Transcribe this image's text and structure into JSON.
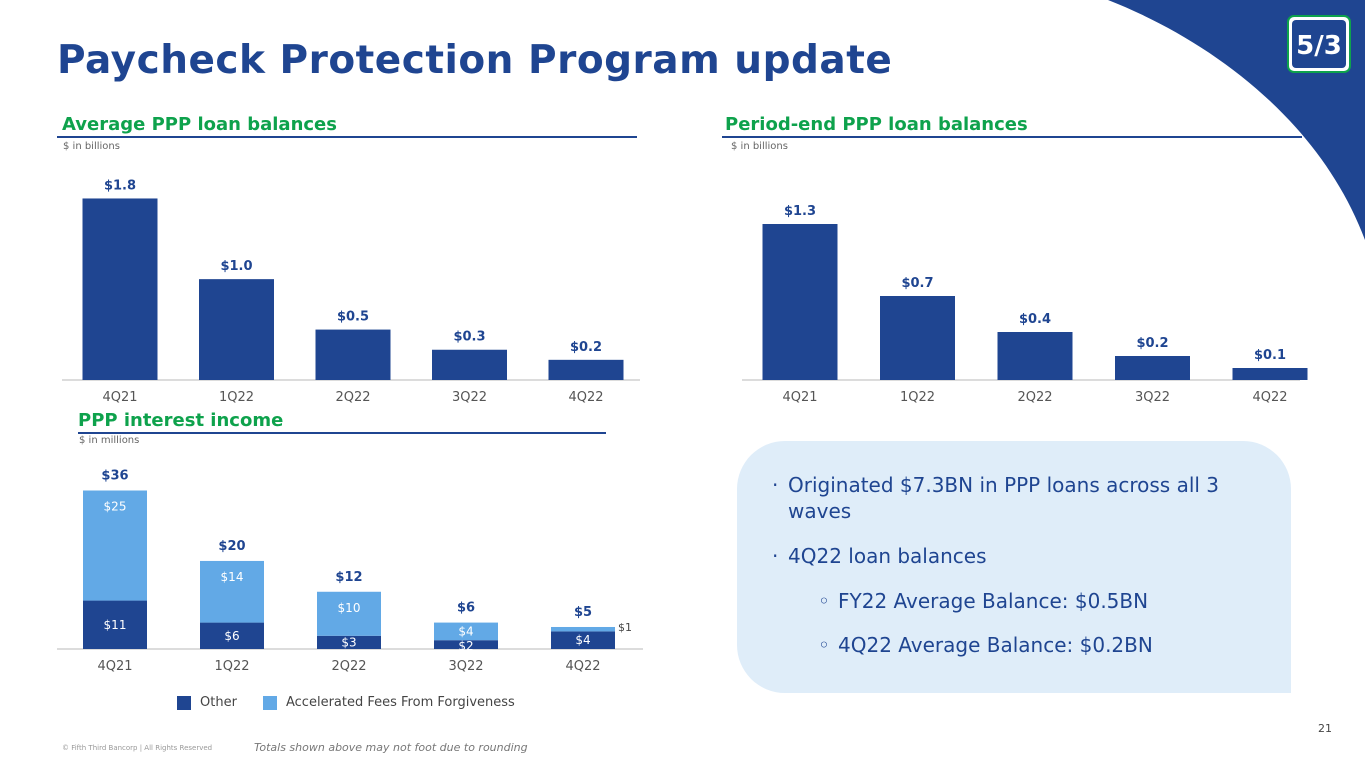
{
  "header": {
    "title": "Paycheck Protection Program update"
  },
  "logo": {
    "text": "5/3"
  },
  "colors": {
    "navy": "#1f4591",
    "light_blue": "#62a9e6",
    "green": "#0ea24c",
    "callout_bg": "#dfedf9"
  },
  "sections": {
    "avg": {
      "title": "Average PPP loan balances",
      "units": "$ in billions"
    },
    "period_end": {
      "title": "Period-end PPP loan balances",
      "units": "$ in billions"
    },
    "income": {
      "title": "PPP interest income",
      "units": "$ in millions"
    }
  },
  "chart_data": [
    {
      "type": "bar",
      "title": "Average PPP loan balances",
      "ylabel": "$ in billions",
      "categories": [
        "4Q21",
        "1Q22",
        "2Q22",
        "3Q22",
        "4Q22"
      ],
      "values": [
        1.8,
        1.0,
        0.5,
        0.3,
        0.2
      ],
      "labels": [
        "$1.8",
        "$1.0",
        "$0.5",
        "$0.3",
        "$0.2"
      ],
      "ylim": [
        0,
        2.0
      ]
    },
    {
      "type": "bar",
      "title": "Period-end PPP loan balances",
      "ylabel": "$ in billions",
      "categories": [
        "4Q21",
        "1Q22",
        "2Q22",
        "3Q22",
        "4Q22"
      ],
      "values": [
        1.3,
        0.7,
        0.4,
        0.2,
        0.1
      ],
      "labels": [
        "$1.3",
        "$0.7",
        "$0.4",
        "$0.2",
        "$0.1"
      ],
      "ylim": [
        0,
        1.5
      ]
    },
    {
      "type": "bar",
      "stacked": true,
      "title": "PPP interest income",
      "ylabel": "$ in millions",
      "categories": [
        "4Q21",
        "1Q22",
        "2Q22",
        "3Q22",
        "4Q22"
      ],
      "series": [
        {
          "name": "Other",
          "values": [
            11,
            6,
            3,
            2,
            4
          ],
          "labels": [
            "$11",
            "$6",
            "$3",
            "$2",
            "$4"
          ]
        },
        {
          "name": "Accelerated Fees From Forgiveness",
          "values": [
            25,
            14,
            10,
            4,
            1
          ],
          "labels": [
            "$25",
            "$14",
            "$10",
            "$4",
            "$1"
          ]
        }
      ],
      "totals": [
        "$36",
        "$20",
        "$12",
        "$6",
        "$5"
      ],
      "ylim": [
        0,
        40
      ]
    }
  ],
  "legend": {
    "other": "Other",
    "fees": "Accelerated Fees From Forgiveness"
  },
  "callout": {
    "bullets": [
      {
        "marker": "·",
        "text": "Originated $7.3BN in PPP loans across all 3 waves"
      },
      {
        "marker": "·",
        "text": "4Q22 loan balances"
      },
      {
        "marker": "◦",
        "text": "FY22 Average Balance: $0.5BN"
      },
      {
        "marker": "◦",
        "text": "4Q22 Average Balance: $0.2BN"
      }
    ]
  },
  "footer": {
    "copyright": "© Fifth Third Bancorp | All Rights Reserved",
    "note": "Totals shown above may not foot due to rounding",
    "page": "21"
  }
}
